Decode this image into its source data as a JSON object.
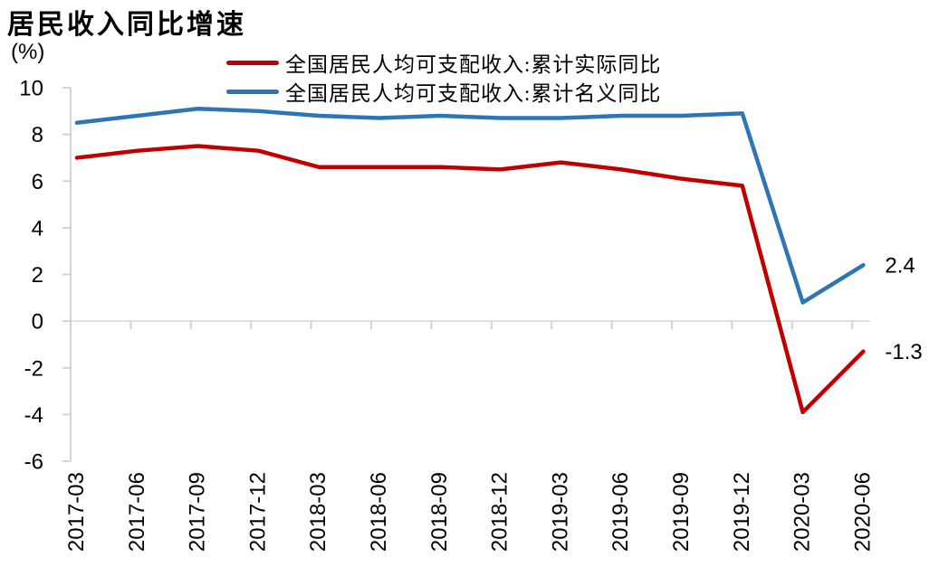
{
  "title": "居民收入同比增速",
  "unit_label": "(%)",
  "legend": [
    {
      "label": "全国居民人均可支配收入:累计实际同比",
      "color": "#c00000"
    },
    {
      "label": "全国居民人均可支配收入:累计名义同比",
      "color": "#2e75b6"
    }
  ],
  "chart_data": {
    "type": "line",
    "title": "居民收入同比增速",
    "ylabel": "(%)",
    "categories": [
      "2017-03",
      "2017-06",
      "2017-09",
      "2017-12",
      "2018-03",
      "2018-06",
      "2018-09",
      "2018-12",
      "2019-03",
      "2019-06",
      "2019-09",
      "2019-12",
      "2020-03",
      "2020-06"
    ],
    "series": [
      {
        "name": "全国居民人均可支配收入:累计实际同比",
        "color": "#c00000",
        "values": [
          7.0,
          7.3,
          7.5,
          7.3,
          6.6,
          6.6,
          6.6,
          6.5,
          6.8,
          6.5,
          6.1,
          5.8,
          -3.9,
          -1.3
        ],
        "end_label": "-1.3"
      },
      {
        "name": "全国居民人均可支配收入:累计名义同比",
        "color": "#2e75b6",
        "values": [
          8.5,
          8.8,
          9.1,
          9.0,
          8.8,
          8.7,
          8.8,
          8.7,
          8.7,
          8.8,
          8.8,
          8.9,
          0.8,
          2.4
        ],
        "end_label": "2.4"
      }
    ],
    "y_ticks": [
      10,
      8,
      6,
      4,
      2,
      0,
      -2,
      -4,
      -6
    ],
    "ylim": [
      -6,
      10
    ],
    "x_label_rotation": -90,
    "grid": "zero-baseline-only",
    "legend_position": "top",
    "axis_color": "#cfcfcf",
    "zero_line_color": "#dcdcdc"
  }
}
